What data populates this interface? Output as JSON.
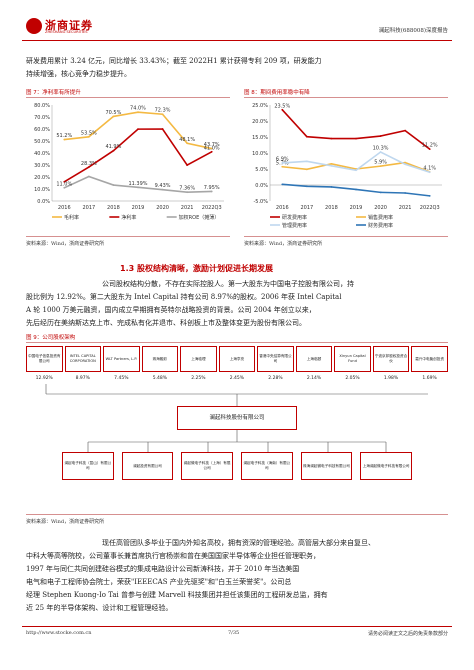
{
  "header": {
    "brand": "浙商证券",
    "brand_sub": "ZHESHANG SECURITIES",
    "doc_tag": "澜起科技(688008)深度报告"
  },
  "intro": {
    "line1": "研发费用累计 3.24 亿元，同比增长 33.43%；截至 2022H1 累计获得专利 209 项，研发能力",
    "line2": "持续增强，核心竞争力稳步提升。"
  },
  "fig7": {
    "title": "图 7：净利率有所提升",
    "source": "资料来源：Wind，浙商证券研究所",
    "chart_data": {
      "type": "line",
      "x": [
        "2016",
        "2017",
        "2018",
        "2019",
        "2020",
        "2021",
        "2022Q3"
      ],
      "ylim": [
        0,
        80
      ],
      "yticks": [
        "0.0%",
        "10.0%",
        "20.0%",
        "30.0%",
        "40.0%",
        "50.0%",
        "60.0%",
        "70.0%",
        "80.0%"
      ],
      "series": [
        {
          "name": "毛利率",
          "color": "#f4b942",
          "values": [
            51.2,
            53.5,
            70.5,
            74.0,
            72.3,
            48.1,
            43.7
          ],
          "labels": [
            "51.2%",
            "53.5%",
            "70.5%",
            "74.0%",
            "72.3%",
            "48.1%",
            "43.7%"
          ]
        },
        {
          "name": "净利率",
          "color": "#c00000",
          "values": [
            16.0,
            28.3,
            41.9,
            59.9,
            60.0,
            29.9,
            41.0
          ],
          "labels": [
            "",
            "",
            "41.9%",
            "",
            "",
            "",
            "41.0%"
          ]
        },
        {
          "name": "加权ROE（摊薄）",
          "color": "#a6a6a6",
          "values": [
            11.0,
            20.4,
            13.3,
            11.39,
            9.43,
            7.36,
            7.95
          ],
          "labels": [
            "11.0%",
            "",
            "",
            "11.39%",
            "9.43%",
            "7.36%",
            "7.95%"
          ]
        }
      ],
      "extra_labels": [
        "28.3%"
      ],
      "legend_position": "bottom"
    }
  },
  "fig8": {
    "title": "图 8：期间费用率稳中有降",
    "source": "资料来源：Wind，浙商证券研究所",
    "chart_data": {
      "type": "line",
      "x": [
        "2016",
        "2017",
        "2018",
        "2019",
        "2020",
        "2021",
        "2022Q3"
      ],
      "ylim": [
        -5,
        25
      ],
      "yticks": [
        "-5.0%",
        "0.0%",
        "5.0%",
        "10.0%",
        "15.0%",
        "20.0%",
        "25.0%"
      ],
      "series": [
        {
          "name": "研发费用率",
          "color": "#c00000",
          "values": [
            23.5,
            15.1,
            14.5,
            14.5,
            15.3,
            17.0,
            11.2
          ],
          "labels": [
            "23.5%",
            "",
            "",
            "",
            "",
            "",
            "11.2%"
          ]
        },
        {
          "name": "销售费用率",
          "color": "#f4b942",
          "values": [
            5.7,
            4.9,
            6.6,
            5.0,
            5.9,
            7.0,
            4.1
          ],
          "labels": [
            "5.7%",
            "",
            "",
            "",
            "5.9%",
            "",
            "4.1%"
          ]
        },
        {
          "name": "管理费用率",
          "color": "#bfd7ee",
          "values": [
            6.9,
            7.4,
            6.0,
            4.6,
            10.3,
            6.5,
            4.0
          ],
          "labels": [
            "6.9%",
            "",
            "",
            "",
            "10.3%",
            "",
            ""
          ]
        },
        {
          "name": "财务费用率",
          "color": "#2e75b6",
          "values": [
            0.2,
            -0.4,
            -0.6,
            -1.4,
            -2.3,
            -2.5,
            -3.4
          ],
          "labels": [
            "",
            "",
            "",
            "",
            "",
            "",
            ""
          ]
        }
      ],
      "legend_position": "bottom"
    }
  },
  "section": {
    "heading": "1.3 股权结构清晰，激励计划促进长期发展",
    "para": [
      "公司股权结构分散，不存在实际控股人。第一大股东为中国电子控股有限公司，持",
      "股比例为 12.92%。第二大股东为 Intel Capital 持有公司 8.97%的股权。2006 年获 Intel Capital",
      "A 轮 1000 万美元融资，国内成立早期拥有英特尔战略投资的背景。公司 2004 年创立以来，",
      "先后经历在美纳斯达克上市、完成私有化并退市、科创板上市及整体变更为股份有限公司。"
    ]
  },
  "fig9": {
    "title": "图 9：公司股权架构",
    "source": "资料来源：Wind，浙商证券研究所",
    "shareholders": [
      {
        "name": "中国电子信息投资有限公司",
        "pct": "12.92%"
      },
      {
        "name": "INTEL CAPITAL CORPORATION",
        "pct": "8.97%"
      },
      {
        "name": "WLT Partners, L.P.",
        "pct": "7.45%"
      },
      {
        "name": "珠海融彩",
        "pct": "5.48%"
      },
      {
        "name": "上海临理",
        "pct": "2.25%"
      },
      {
        "name": "上海亨亮",
        "pct": "2.45%"
      },
      {
        "name": "香港中央结算有限公司",
        "pct": "2.28%"
      },
      {
        "name": "上海临颐",
        "pct": "2.14%"
      },
      {
        "name": "Xinyun Capital Fund",
        "pct": "2.05%"
      },
      {
        "name": "宁波京邦股权投资合伙",
        "pct": "1.98%"
      },
      {
        "name": "嘉兴中电聚创投资",
        "pct": "1.69%"
      }
    ],
    "company": "澜起科技股份有限公司",
    "subsidiaries": [
      "澜起电子科技（昆山）有限公司",
      "澜起投资有限公司",
      "澜起微电子科技（上海）有限公司",
      "澜起电子科技（海南）有限公司",
      "珠海澜起微电子科技有限公司",
      "上海澜起微电子科技有限公司"
    ]
  },
  "mgmt": {
    "lines": [
      "现任高管团队多毕业于国内外知名高校，拥有资深的管理经验。高管层大部分来自复旦、",
      "中科大等高等院校，公司董事长兼首席执行官杨崇和曾在美国国家半导体等企业担任管理职务，",
      "1997 年与同仁共同创建硅谷模式的集成电路设计公司新涛科技，并于 2010 年当选美国",
      "电气和电子工程师协会院士，荣获\"IEEECAS 产业先驱奖\"和\"白玉兰荣誉奖\"。公司总",
      "经理 Stephen Kuong-Io Tai 曾参与创建 Marvell 科技集团并担任该集团的工程研发总监，拥有",
      "近 25 年的半导体架构、设计和工程管理经验。"
    ]
  },
  "footer": {
    "url": "http://www.stocke.com.cn",
    "page": "7/35",
    "disclaimer": "请务必阅读正文之后的免责条款部分"
  }
}
